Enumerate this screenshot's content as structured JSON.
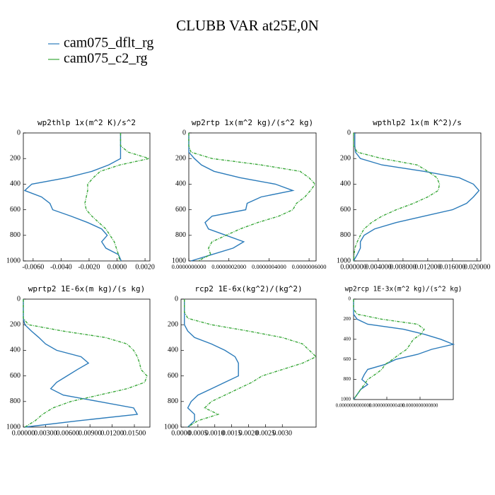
{
  "title": "CLUBB VAR at25E,0N",
  "chart_data": [
    {
      "type": "line",
      "title": "wp2thlp  1x(m^2 K)/s^2",
      "y": [
        0,
        100,
        150,
        200,
        250,
        300,
        350,
        400,
        450,
        500,
        550,
        600,
        650,
        700,
        750,
        800,
        850,
        900,
        950,
        1000
      ],
      "ylim": [
        1000,
        0
      ],
      "yticks": [
        0,
        200,
        400,
        600,
        800,
        1000
      ],
      "xlim": [
        -0.0067,
        0.00235
      ],
      "xticks": [
        {
          "value": -0.006,
          "label": "-0.0060"
        },
        {
          "value": -0.004,
          "label": "-0.0040"
        },
        {
          "value": -0.002,
          "label": "-0.0020"
        },
        {
          "value": 0,
          "label": "0.0000"
        },
        {
          "value": 0.002,
          "label": "0.0020"
        }
      ],
      "series": [
        {
          "name": "cam075_dflt_rg",
          "color": "#2b7bba",
          "values": [
            0.00025,
            0.00025,
            0.00025,
            0.00025,
            -0.0006,
            -0.0018,
            -0.0036,
            -0.0061,
            -0.0066,
            -0.0054,
            -0.0048,
            -0.0046,
            -0.0033,
            -0.0021,
            -0.0011,
            -0.0007,
            -0.0011,
            -0.0008,
            0.0001,
            0.0003
          ]
        },
        {
          "name": "cam075_c2_rg",
          "color": "#3aa83a",
          "values": [
            0.00025,
            0.00025,
            0.0008,
            0.0023,
            0.0002,
            -0.0012,
            -0.0017,
            -0.0021,
            -0.0021,
            -0.0022,
            -0.0023,
            -0.0022,
            -0.0018,
            -0.0013,
            -0.0008,
            -0.0005,
            -0.0002,
            -5e-05,
            0.0001,
            0.0002
          ]
        }
      ]
    },
    {
      "type": "line",
      "title": "wp2rtp  1x(m^2 kg)/(s^2 kg)",
      "y": [
        0,
        100,
        150,
        200,
        250,
        300,
        350,
        400,
        450,
        500,
        550,
        600,
        650,
        700,
        750,
        800,
        850,
        900,
        950,
        1000
      ],
      "ylim": [
        1000,
        0
      ],
      "yticks": [
        0,
        200,
        400,
        600,
        800,
        1000
      ],
      "xlim": [
        0,
        6.35e-07
      ],
      "xticks": [
        {
          "value": 0,
          "label": "0.0000000000"
        },
        {
          "value": 2e-07,
          "label": "0.0000002000"
        },
        {
          "value": 4e-07,
          "label": "0.0000004000"
        },
        {
          "value": 6e-07,
          "label": "0.0000006000"
        }
      ],
      "series": [
        {
          "name": "cam075_dflt_rg",
          "color": "#2b7bba",
          "values": [
            0,
            0,
            0,
            2.8e-08,
            6.3e-08,
            1.26e-07,
            2.56e-07,
            4.32e-07,
            5.19e-07,
            3.61e-07,
            2.91e-07,
            2.84e-07,
            1.16e-07,
            8.1e-08,
            9.8e-08,
            1.86e-07,
            2.74e-07,
            2.21e-07,
            1.16e-07,
            1.1e-08
          ]
        },
        {
          "name": "cam075_c2_rg",
          "color": "#3aa83a",
          "values": [
            0,
            0,
            1.1e-08,
            1.16e-07,
            3.61e-07,
            5.55e-07,
            6e-07,
            6.3e-07,
            6.07e-07,
            5.79e-07,
            5.37e-07,
            5.19e-07,
            4.49e-07,
            3.44e-07,
            2.56e-07,
            1.86e-07,
            1.16e-07,
            9.8e-08,
            1.09e-07,
            4.6e-08
          ]
        }
      ]
    },
    {
      "type": "line",
      "title": "wpthlp2  1x(m K^2)/s",
      "y": [
        0,
        100,
        150,
        200,
        250,
        300,
        350,
        400,
        450,
        500,
        550,
        600,
        650,
        700,
        750,
        800,
        850,
        900,
        950,
        1000
      ],
      "ylim": [
        1000,
        0
      ],
      "yticks": [
        0,
        200,
        400,
        600,
        800,
        1000
      ],
      "xlim": [
        0,
        0.0206
      ],
      "xticks": [
        {
          "value": 0,
          "label": "0.000000"
        },
        {
          "value": 0.004,
          "label": "0.004000"
        },
        {
          "value": 0.008,
          "label": "0.008000"
        },
        {
          "value": 0.012,
          "label": "0.012000"
        },
        {
          "value": 0.016,
          "label": "0.016000"
        },
        {
          "value": 0.02,
          "label": "0.020000"
        }
      ],
      "series": [
        {
          "name": "cam075_dflt_rg",
          "color": "#2b7bba",
          "values": [
            0.0002,
            0.0002,
            0.0003,
            0.0011,
            0.0046,
            0.0114,
            0.0171,
            0.0194,
            0.0203,
            0.0194,
            0.0183,
            0.016,
            0.0114,
            0.0069,
            0.0034,
            0.0017,
            0.0011,
            0.0011,
            0.0006,
            0
          ]
        },
        {
          "name": "cam075_c2_rg",
          "color": "#3aa83a",
          "values": [
            0,
            0,
            0.0006,
            0.0046,
            0.0103,
            0.012,
            0.0135,
            0.0139,
            0.0137,
            0.012,
            0.0097,
            0.0069,
            0.0046,
            0.0029,
            0.0017,
            0.0011,
            0.0006,
            0.0002,
            0.0001,
            0
          ]
        }
      ]
    },
    {
      "type": "line",
      "title": "wprtp2  1E-6x(m kg)/(s kg)",
      "y": [
        0,
        100,
        150,
        200,
        250,
        300,
        350,
        400,
        450,
        500,
        550,
        600,
        650,
        700,
        750,
        800,
        850,
        900,
        950,
        1000
      ],
      "ylim": [
        1000,
        0
      ],
      "yticks": [
        0,
        200,
        400,
        600,
        800,
        1000
      ],
      "xlim": [
        0,
        0.0171
      ],
      "xticks": [
        {
          "value": 0,
          "label": "0.00000"
        },
        {
          "value": 0.003,
          "label": "0.00300"
        },
        {
          "value": 0.006,
          "label": "0.00600"
        },
        {
          "value": 0.009,
          "label": "0.00900"
        },
        {
          "value": 0.012,
          "label": "0.01200"
        },
        {
          "value": 0.015,
          "label": "0.01500"
        }
      ],
      "series": [
        {
          "name": "cam075_dflt_rg",
          "color": "#2b7bba",
          "values": [
            0,
            0,
            0,
            0.0002,
            0.0011,
            0.0021,
            0.003,
            0.0045,
            0.0078,
            0.0088,
            0.0073,
            0.0059,
            0.0045,
            0.0037,
            0.0054,
            0.0102,
            0.0149,
            0.0154,
            0.0075,
            0.0002
          ]
        },
        {
          "name": "cam075_c2_rg",
          "color": "#3aa83a",
          "values": [
            0,
            0,
            0,
            0.0007,
            0.0054,
            0.0111,
            0.014,
            0.0149,
            0.0154,
            0.0157,
            0.0159,
            0.0167,
            0.0164,
            0.014,
            0.0102,
            0.0064,
            0.004,
            0.0026,
            0.0016,
            0.0002
          ]
        }
      ]
    },
    {
      "type": "line",
      "title": "rcp2  1E-6x(kg^2)/(kg^2)",
      "y": [
        0,
        100,
        150,
        200,
        250,
        300,
        350,
        400,
        450,
        500,
        550,
        600,
        650,
        700,
        750,
        800,
        850,
        900,
        950,
        1000
      ],
      "ylim": [
        1000,
        0
      ],
      "yticks": [
        0,
        200,
        400,
        600,
        800,
        1000
      ],
      "xlim": [
        0,
        0.004
      ],
      "xticks": [
        {
          "value": 0,
          "label": "0.0000"
        },
        {
          "value": 0.0005,
          "label": "0.0005"
        },
        {
          "value": 0.001,
          "label": "0.0010"
        },
        {
          "value": 0.0015,
          "label": "0.0015"
        },
        {
          "value": 0.002,
          "label": "0.0020"
        },
        {
          "value": 0.0025,
          "label": "0.0025"
        },
        {
          "value": 0.003,
          "label": "0.0030"
        }
      ],
      "series": [
        {
          "name": "cam075_dflt_rg",
          "color": "#2b7bba",
          "values": [
            0.0001,
            0.0001,
            0.0001,
            0.0001,
            0.0002,
            0.0004,
            0.0009,
            0.0013,
            0.0016,
            0.0017,
            0.0017,
            0.0017,
            0.0013,
            0.0009,
            0.0005,
            0.0003,
            0.0002,
            0.0004,
            0.0004,
            0.0002
          ]
        },
        {
          "name": "cam075_c2_rg",
          "color": "#3aa83a",
          "values": [
            0.0001,
            0.0001,
            0.0002,
            0.0009,
            0.002,
            0.003,
            0.0036,
            0.0038,
            0.004,
            0.0036,
            0.003,
            0.0024,
            0.0021,
            0.0017,
            0.0013,
            0.0009,
            0.0007,
            0.0011,
            0.0005,
            0.0002
          ]
        }
      ]
    },
    {
      "type": "line",
      "title": "wp2rcp  1E-3x(m^2 kg)/(s^2 kg)",
      "y": [
        0,
        100,
        150,
        200,
        250,
        300,
        350,
        400,
        450,
        500,
        550,
        600,
        650,
        700,
        750,
        800,
        850,
        900,
        950,
        1000
      ],
      "ylim": [
        1000,
        0
      ],
      "yticks": [
        0,
        200,
        400,
        600,
        800,
        1000
      ],
      "xlim": [
        0,
        1.2e-10
      ],
      "xticks": [
        {
          "value": 0,
          "label": "0.0000000000000"
        },
        {
          "value": 4e-11,
          "label": "0.0000000000400"
        },
        {
          "value": 8e-11,
          "label": "0.0000000000800"
        }
      ],
      "series": [
        {
          "name": "cam075_dflt_rg",
          "color": "#2b7bba",
          "values": [
            0,
            0,
            0,
            4.3e-12,
            1.7e-11,
            6e-11,
            8.5e-11,
            1.05e-10,
            1.2e-10,
            9.4e-11,
            7.7e-11,
            5.1e-11,
            3.8e-11,
            1.7e-11,
            1.3e-11,
            1e-11,
            1.7e-11,
            8.5e-12,
            4.3e-12,
            0
          ]
        },
        {
          "name": "cam075_c2_rg",
          "color": "#3aa83a",
          "values": [
            0,
            0,
            4.3e-12,
            3.4e-11,
            7.7e-11,
            8.5e-11,
            8.1e-11,
            7.2e-11,
            6.8e-11,
            6.4e-11,
            5.5e-11,
            4.7e-11,
            3.8e-11,
            3.4e-11,
            2.6e-11,
            1.7e-11,
            1.3e-11,
            8.5e-12,
            4.3e-12,
            0
          ]
        }
      ]
    }
  ]
}
